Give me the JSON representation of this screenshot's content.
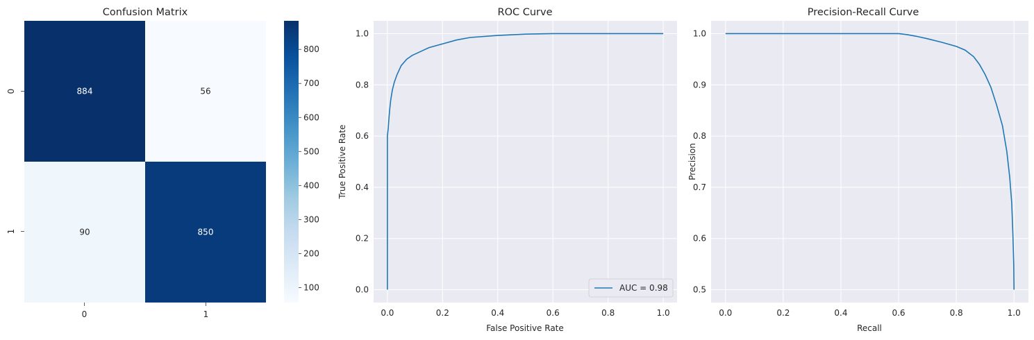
{
  "chart_data": [
    {
      "type": "heatmap",
      "title": "Confusion Matrix",
      "x_tick_labels": [
        "0",
        "1"
      ],
      "y_tick_labels": [
        "0",
        "1"
      ],
      "matrix": [
        [
          884,
          56
        ],
        [
          90,
          850
        ]
      ],
      "cell_labels": [
        [
          "884",
          "56"
        ],
        [
          "90",
          "850"
        ]
      ],
      "colormap": "Blues",
      "colorbar": {
        "range": [
          56,
          884
        ],
        "tick_values": [
          100,
          200,
          300,
          400,
          500,
          600,
          700,
          800
        ],
        "tick_labels": [
          "100",
          "200",
          "300",
          "400",
          "500",
          "600",
          "700",
          "800"
        ]
      }
    },
    {
      "type": "line",
      "title": "ROC Curve",
      "xlabel": "False Positive Rate",
      "ylabel": "True Positive Rate",
      "xlim": [
        -0.05,
        1.05
      ],
      "ylim": [
        -0.05,
        1.05
      ],
      "x_ticks": [
        "0.0",
        "0.2",
        "0.4",
        "0.6",
        "0.8",
        "1.0"
      ],
      "y_ticks": [
        "0.0",
        "0.2",
        "0.4",
        "0.6",
        "0.8",
        "1.0"
      ],
      "grid": true,
      "legend_position": "lower-right",
      "series": [
        {
          "name": "AUC = 0.98",
          "color": "#1f77b4",
          "points": [
            [
              0,
              0
            ],
            [
              0,
              0.6
            ],
            [
              0.003,
              0.63
            ],
            [
              0.005,
              0.66
            ],
            [
              0.008,
              0.7
            ],
            [
              0.012,
              0.74
            ],
            [
              0.018,
              0.78
            ],
            [
              0.025,
              0.81
            ],
            [
              0.035,
              0.84
            ],
            [
              0.05,
              0.875
            ],
            [
              0.07,
              0.9
            ],
            [
              0.09,
              0.915
            ],
            [
              0.12,
              0.93
            ],
            [
              0.15,
              0.945
            ],
            [
              0.2,
              0.96
            ],
            [
              0.25,
              0.975
            ],
            [
              0.3,
              0.985
            ],
            [
              0.4,
              0.993
            ],
            [
              0.5,
              0.998
            ],
            [
              0.6,
              1.0
            ],
            [
              1.0,
              1.0
            ]
          ]
        }
      ]
    },
    {
      "type": "line",
      "title": "Precision-Recall Curve",
      "xlabel": "Recall",
      "ylabel": "Precision",
      "xlim": [
        -0.05,
        1.05
      ],
      "ylim": [
        0.475,
        1.025
      ],
      "x_ticks": [
        "0.0",
        "0.2",
        "0.4",
        "0.6",
        "0.8",
        "1.0"
      ],
      "y_ticks": [
        "0.5",
        "0.6",
        "0.7",
        "0.8",
        "0.9",
        "1.0"
      ],
      "grid": true,
      "series": [
        {
          "color": "#1f77b4",
          "points": [
            [
              0,
              1.0
            ],
            [
              0.6,
              1.0
            ],
            [
              0.63,
              0.998
            ],
            [
              0.66,
              0.995
            ],
            [
              0.7,
              0.99
            ],
            [
              0.75,
              0.983
            ],
            [
              0.8,
              0.975
            ],
            [
              0.83,
              0.968
            ],
            [
              0.86,
              0.955
            ],
            [
              0.88,
              0.94
            ],
            [
              0.9,
              0.92
            ],
            [
              0.92,
              0.895
            ],
            [
              0.94,
              0.86
            ],
            [
              0.96,
              0.82
            ],
            [
              0.975,
              0.77
            ],
            [
              0.985,
              0.72
            ],
            [
              0.992,
              0.67
            ],
            [
              0.996,
              0.61
            ],
            [
              0.999,
              0.55
            ],
            [
              1.0,
              0.5
            ]
          ]
        }
      ]
    }
  ]
}
